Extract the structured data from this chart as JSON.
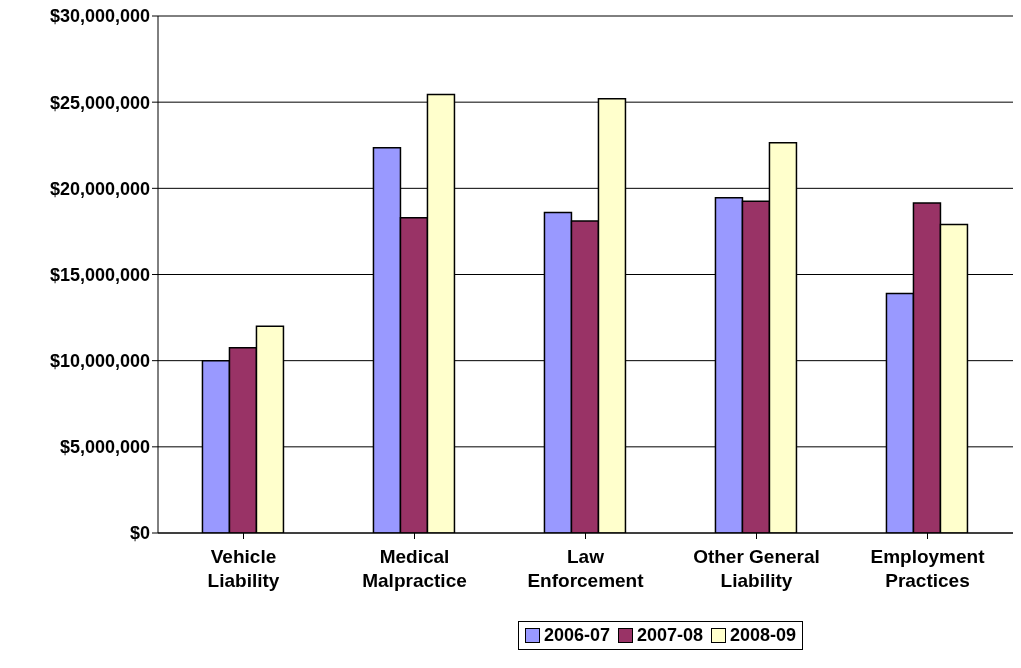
{
  "chart_data": {
    "type": "bar",
    "categories": [
      "Vehicle Liability",
      "Medical Malpractice",
      "Law Enforcement",
      "Other General Liability",
      "Employment Practices"
    ],
    "series": [
      {
        "name": "2006-07",
        "color": "#9999ff",
        "values": [
          10000000,
          22350000,
          18600000,
          19450000,
          13900000
        ]
      },
      {
        "name": "2007-08",
        "color": "#993366",
        "values": [
          10750000,
          18300000,
          18100000,
          19250000,
          19150000
        ]
      },
      {
        "name": "2008-09",
        "color": "#ffffcc",
        "values": [
          12000000,
          25450000,
          25200000,
          22650000,
          17900000
        ]
      }
    ],
    "ylim": [
      0,
      30000000
    ],
    "yticks": [
      {
        "value": 0,
        "label": "$0"
      },
      {
        "value": 5000000,
        "label": "$5,000,000"
      },
      {
        "value": 10000000,
        "label": "$10,000,000"
      },
      {
        "value": 15000000,
        "label": "$15,000,000"
      },
      {
        "value": 20000000,
        "label": "$20,000,000"
      },
      {
        "value": 25000000,
        "label": "$25,000,000"
      },
      {
        "value": 30000000,
        "label": "$30,000,000"
      }
    ],
    "grid": "y",
    "legend": "bottom"
  }
}
